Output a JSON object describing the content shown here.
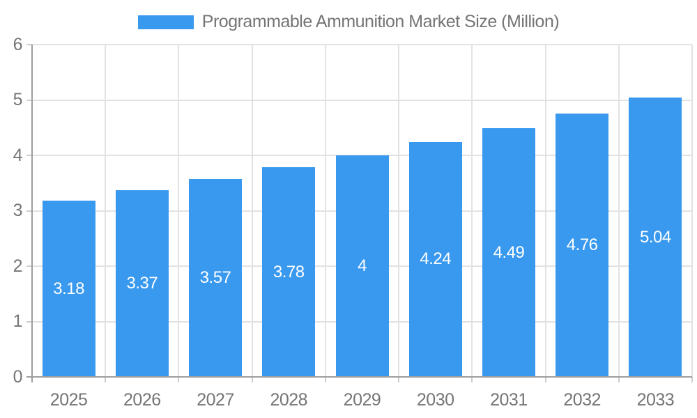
{
  "chart": {
    "legend": {
      "label": "Programmable Ammunition Market Size (Million)"
    }
  },
  "chart_data": {
    "type": "bar",
    "title": "Programmable Ammunition Market Size (Million)",
    "categories": [
      "2025",
      "2026",
      "2027",
      "2028",
      "2029",
      "2030",
      "2031",
      "2032",
      "2033"
    ],
    "series": [
      {
        "name": "Programmable Ammunition Market Size (Million)",
        "values": [
          3.18,
          3.37,
          3.57,
          3.78,
          4,
          4.24,
          4.49,
          4.76,
          5.04
        ],
        "value_labels": [
          "3.18",
          "3.37",
          "3.57",
          "3.78",
          "4",
          "4.24",
          "4.49",
          "4.76",
          "5.04"
        ]
      }
    ],
    "xlabel": "",
    "ylabel": "",
    "ylim": [
      0,
      6
    ],
    "y_ticks": [
      "0",
      "1",
      "2",
      "3",
      "4",
      "5",
      "6"
    ],
    "grid": {
      "horizontal": true,
      "vertical": true
    },
    "legend_position": "top",
    "value_label_position": "inside-middle",
    "colors": {
      "bar": "#3999EF",
      "value_text": "#FFFFFF",
      "axis_text": "#757575",
      "axis_line": "#9E9E9E",
      "gridline": "#E2E2E2",
      "tick": "#CDCDCD",
      "background": "#FFFFFF"
    }
  }
}
